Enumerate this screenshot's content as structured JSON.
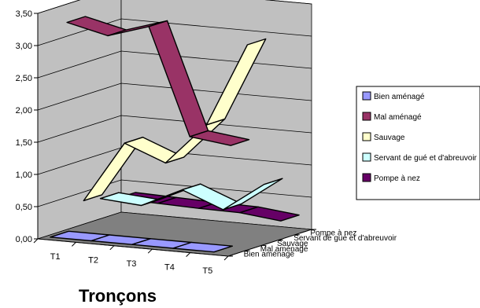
{
  "chart_data": {
    "type": "line",
    "variant": "3d-ribbon",
    "title": "",
    "xlabel": "Tronçons",
    "ylabel": "",
    "categories": [
      "T1",
      "T2",
      "T3",
      "T4",
      "T5"
    ],
    "ylim": [
      0,
      3.5
    ],
    "y_ticks": [
      "0,00",
      "0,50",
      "1,00",
      "1,50",
      "2,00",
      "2,50",
      "3,00",
      "3,50"
    ],
    "grid": true,
    "legend_position": "right",
    "series": [
      {
        "name": "Bien aménagé",
        "values": [
          0.05,
          0.05,
          0.05,
          0.05,
          0.05
        ],
        "color": "#9999ff"
      },
      {
        "name": "Mal aménagé",
        "values": [
          3.3,
          3.15,
          3.35,
          1.7,
          1.62
        ],
        "color": "#993366"
      },
      {
        "name": "Sauvage",
        "values": [
          0.45,
          1.4,
          1.15,
          1.8,
          3.1
        ],
        "color": "#ffffcc"
      },
      {
        "name": "Servant de gué et d'abreuvoir",
        "values": [
          0.4,
          0.35,
          0.65,
          0.4,
          0.85
        ],
        "color": "#ccffff"
      },
      {
        "name": "Pompe à nez",
        "values": [
          0.32,
          0.3,
          0.28,
          0.27,
          0.2
        ],
        "color": "#660066"
      }
    ]
  }
}
